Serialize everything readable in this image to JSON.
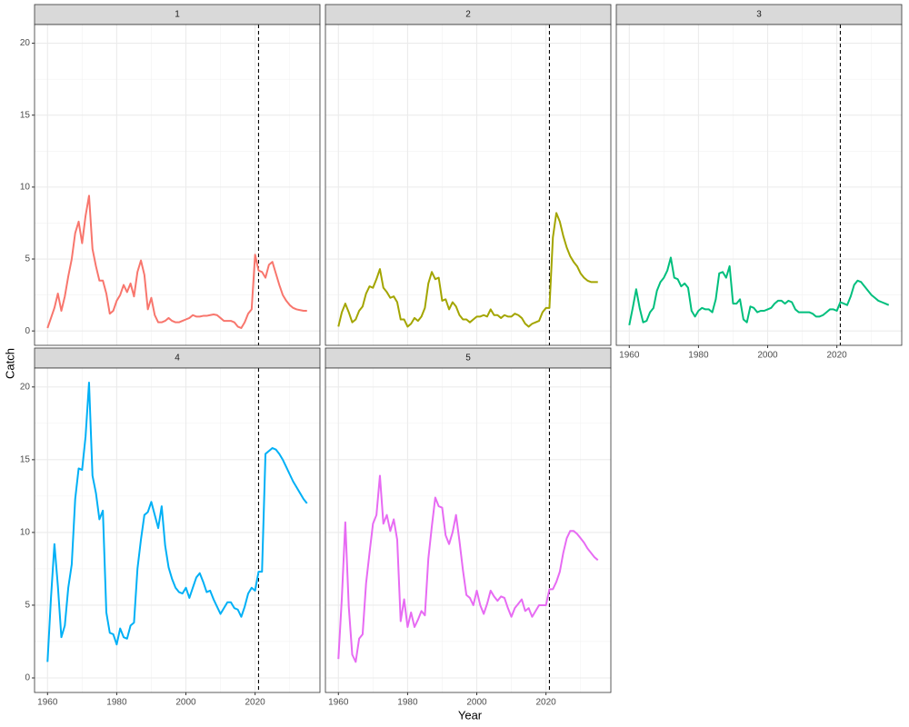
{
  "axis_labels": {
    "x": "Year",
    "y": "Catch"
  },
  "chart_data": [
    {
      "type": "line",
      "title": "1",
      "color": "#F8766D",
      "vline": 2021,
      "grid": true,
      "xlim": [
        1956.25,
        2038.75
      ],
      "ylim": [
        -1.0,
        21.3
      ],
      "xticks": [
        1960,
        1980,
        2000,
        2020
      ],
      "yticks": [
        0,
        5,
        10,
        15,
        20
      ],
      "xminor": [
        1970,
        1990,
        2010,
        2030
      ],
      "yminor": [
        2.5,
        7.5,
        12.5,
        17.5
      ],
      "x": [
        1960,
        1961,
        1962,
        1963,
        1964,
        1965,
        1966,
        1967,
        1968,
        1969,
        1970,
        1971,
        1972,
        1973,
        1974,
        1975,
        1976,
        1977,
        1978,
        1979,
        1980,
        1981,
        1982,
        1983,
        1984,
        1985,
        1986,
        1987,
        1988,
        1989,
        1990,
        1991,
        1992,
        1993,
        1994,
        1995,
        1996,
        1997,
        1998,
        1999,
        2000,
        2001,
        2002,
        2003,
        2004,
        2005,
        2006,
        2007,
        2008,
        2009,
        2010,
        2011,
        2012,
        2013,
        2014,
        2015,
        2016,
        2017,
        2018,
        2019,
        2020,
        2021,
        2022,
        2023,
        2024,
        2025,
        2026,
        2027,
        2028,
        2029,
        2030,
        2031,
        2032,
        2033,
        2034,
        2035
      ],
      "values": [
        0.2,
        0.9,
        1.6,
        2.6,
        1.4,
        2.4,
        3.8,
        5.0,
        6.8,
        7.6,
        6.1,
        8.0,
        9.4,
        5.7,
        4.5,
        3.5,
        3.5,
        2.6,
        1.2,
        1.4,
        2.1,
        2.5,
        3.2,
        2.7,
        3.3,
        2.4,
        4.1,
        4.9,
        3.9,
        1.5,
        2.3,
        1.1,
        0.6,
        0.6,
        0.7,
        0.9,
        0.7,
        0.6,
        0.6,
        0.7,
        0.8,
        0.9,
        1.1,
        1.0,
        1.0,
        1.05,
        1.05,
        1.1,
        1.15,
        1.1,
        0.9,
        0.7,
        0.7,
        0.7,
        0.6,
        0.3,
        0.2,
        0.6,
        1.2,
        1.5,
        5.3,
        4.2,
        4.1,
        3.7,
        4.6,
        4.8,
        4.0,
        3.2,
        2.5,
        2.1,
        1.8,
        1.6,
        1.5,
        1.45,
        1.4,
        1.4
      ]
    },
    {
      "type": "line",
      "title": "2",
      "color": "#A3A500",
      "vline": 2021,
      "grid": true,
      "xlim": [
        1956.25,
        2038.75
      ],
      "ylim": [
        -1.0,
        21.3
      ],
      "xticks": [
        1960,
        1980,
        2000,
        2020
      ],
      "yticks": [
        0,
        5,
        10,
        15,
        20
      ],
      "xminor": [
        1970,
        1990,
        2010,
        2030
      ],
      "yminor": [
        2.5,
        7.5,
        12.5,
        17.5
      ],
      "x": [
        1960,
        1961,
        1962,
        1963,
        1964,
        1965,
        1966,
        1967,
        1968,
        1969,
        1970,
        1971,
        1972,
        1973,
        1974,
        1975,
        1976,
        1977,
        1978,
        1979,
        1980,
        1981,
        1982,
        1983,
        1984,
        1985,
        1986,
        1987,
        1988,
        1989,
        1990,
        1991,
        1992,
        1993,
        1994,
        1995,
        1996,
        1997,
        1998,
        1999,
        2000,
        2001,
        2002,
        2003,
        2004,
        2005,
        2006,
        2007,
        2008,
        2009,
        2010,
        2011,
        2012,
        2013,
        2014,
        2015,
        2016,
        2017,
        2018,
        2019,
        2020,
        2021,
        2022,
        2023,
        2024,
        2025,
        2026,
        2027,
        2028,
        2029,
        2030,
        2031,
        2032,
        2033,
        2034,
        2035
      ],
      "values": [
        0.3,
        1.3,
        1.9,
        1.3,
        0.6,
        0.8,
        1.4,
        1.7,
        2.6,
        3.1,
        3.0,
        3.6,
        4.3,
        3.0,
        2.7,
        2.3,
        2.4,
        2.0,
        0.8,
        0.8,
        0.3,
        0.5,
        0.9,
        0.7,
        1.0,
        1.6,
        3.3,
        4.1,
        3.6,
        3.7,
        2.1,
        2.2,
        1.5,
        2.0,
        1.7,
        1.1,
        0.8,
        0.8,
        0.6,
        0.8,
        1.0,
        1.0,
        1.1,
        1.0,
        1.5,
        1.1,
        1.1,
        0.9,
        1.1,
        1.0,
        1.0,
        1.2,
        1.1,
        0.9,
        0.5,
        0.3,
        0.5,
        0.6,
        0.7,
        1.3,
        1.6,
        1.6,
        6.5,
        8.2,
        7.6,
        6.6,
        5.8,
        5.2,
        4.8,
        4.5,
        4.0,
        3.7,
        3.5,
        3.4,
        3.4,
        3.4
      ]
    },
    {
      "type": "line",
      "title": "3",
      "color": "#00BF7D",
      "vline": 2021,
      "grid": true,
      "xlim": [
        1956.25,
        2038.75
      ],
      "ylim": [
        -1.0,
        21.3
      ],
      "xticks": [
        1960,
        1980,
        2000,
        2020
      ],
      "yticks": [
        0,
        5,
        10,
        15,
        20
      ],
      "xminor": [
        1970,
        1990,
        2010,
        2030
      ],
      "yminor": [
        2.5,
        7.5,
        12.5,
        17.5
      ],
      "x": [
        1960,
        1961,
        1962,
        1963,
        1964,
        1965,
        1966,
        1967,
        1968,
        1969,
        1970,
        1971,
        1972,
        1973,
        1974,
        1975,
        1976,
        1977,
        1978,
        1979,
        1980,
        1981,
        1982,
        1983,
        1984,
        1985,
        1986,
        1987,
        1988,
        1989,
        1990,
        1991,
        1992,
        1993,
        1994,
        1995,
        1996,
        1997,
        1998,
        1999,
        2000,
        2001,
        2002,
        2003,
        2004,
        2005,
        2006,
        2007,
        2008,
        2009,
        2010,
        2011,
        2012,
        2013,
        2014,
        2015,
        2016,
        2017,
        2018,
        2019,
        2020,
        2021,
        2022,
        2023,
        2024,
        2025,
        2026,
        2027,
        2028,
        2029,
        2030,
        2031,
        2032,
        2033,
        2034,
        2035
      ],
      "values": [
        0.4,
        1.6,
        2.9,
        1.6,
        0.6,
        0.7,
        1.3,
        1.6,
        2.8,
        3.4,
        3.7,
        4.2,
        5.1,
        3.7,
        3.6,
        3.1,
        3.3,
        3.0,
        1.4,
        1.0,
        1.4,
        1.6,
        1.5,
        1.5,
        1.3,
        2.2,
        4.0,
        4.1,
        3.7,
        4.5,
        1.9,
        1.9,
        2.2,
        0.8,
        0.6,
        1.7,
        1.6,
        1.3,
        1.4,
        1.4,
        1.5,
        1.6,
        1.9,
        2.1,
        2.1,
        1.9,
        2.1,
        2.0,
        1.5,
        1.3,
        1.3,
        1.3,
        1.3,
        1.2,
        1.0,
        1.0,
        1.1,
        1.3,
        1.5,
        1.5,
        1.4,
        2.0,
        1.9,
        1.8,
        2.4,
        3.2,
        3.5,
        3.4,
        3.1,
        2.8,
        2.5,
        2.3,
        2.1,
        2.0,
        1.9,
        1.8
      ]
    },
    {
      "type": "line",
      "title": "4",
      "color": "#00B0F6",
      "vline": 2021,
      "grid": true,
      "xlim": [
        1956.25,
        2038.75
      ],
      "ylim": [
        -1.0,
        21.3
      ],
      "xticks": [
        1960,
        1980,
        2000,
        2020
      ],
      "yticks": [
        0,
        5,
        10,
        15,
        20
      ],
      "xminor": [
        1970,
        1990,
        2010,
        2030
      ],
      "yminor": [
        2.5,
        7.5,
        12.5,
        17.5
      ],
      "x": [
        1960,
        1961,
        1962,
        1963,
        1964,
        1965,
        1966,
        1967,
        1968,
        1969,
        1970,
        1971,
        1972,
        1973,
        1974,
        1975,
        1976,
        1977,
        1978,
        1979,
        1980,
        1981,
        1982,
        1983,
        1984,
        1985,
        1986,
        1987,
        1988,
        1989,
        1990,
        1991,
        1992,
        1993,
        1994,
        1995,
        1996,
        1997,
        1998,
        1999,
        2000,
        2001,
        2002,
        2003,
        2004,
        2005,
        2006,
        2007,
        2008,
        2009,
        2010,
        2011,
        2012,
        2013,
        2014,
        2015,
        2016,
        2017,
        2018,
        2019,
        2020,
        2021,
        2022,
        2023,
        2024,
        2025,
        2026,
        2027,
        2028,
        2029,
        2030,
        2031,
        2032,
        2033,
        2034,
        2035
      ],
      "values": [
        1.1,
        5.5,
        9.2,
        6.3,
        2.8,
        3.6,
        6.2,
        7.8,
        12.3,
        14.4,
        14.3,
        16.6,
        20.3,
        13.9,
        12.7,
        10.9,
        11.5,
        4.5,
        3.1,
        3.0,
        2.3,
        3.4,
        2.8,
        2.7,
        3.6,
        3.8,
        7.5,
        9.5,
        11.2,
        11.4,
        12.1,
        11.2,
        10.3,
        11.8,
        9.1,
        7.6,
        6.8,
        6.2,
        5.9,
        5.8,
        6.2,
        5.5,
        6.2,
        6.9,
        7.2,
        6.6,
        5.9,
        6.0,
        5.4,
        4.9,
        4.4,
        4.8,
        5.2,
        5.2,
        4.8,
        4.7,
        4.2,
        4.9,
        5.8,
        6.2,
        6.0,
        7.3,
        7.3,
        15.4,
        15.6,
        15.8,
        15.7,
        15.4,
        15.0,
        14.5,
        14.0,
        13.5,
        13.1,
        12.7,
        12.3,
        12.0
      ]
    },
    {
      "type": "line",
      "title": "5",
      "color": "#E76BF3",
      "vline": 2021,
      "grid": true,
      "xlim": [
        1956.25,
        2038.75
      ],
      "ylim": [
        -1.0,
        21.3
      ],
      "xticks": [
        1960,
        1980,
        2000,
        2020
      ],
      "yticks": [
        0,
        5,
        10,
        15,
        20
      ],
      "xminor": [
        1970,
        1990,
        2010,
        2030
      ],
      "yminor": [
        2.5,
        7.5,
        12.5,
        17.5
      ],
      "x": [
        1960,
        1961,
        1962,
        1963,
        1964,
        1965,
        1966,
        1967,
        1968,
        1969,
        1970,
        1971,
        1972,
        1973,
        1974,
        1975,
        1976,
        1977,
        1978,
        1979,
        1980,
        1981,
        1982,
        1983,
        1984,
        1985,
        1986,
        1987,
        1988,
        1989,
        1990,
        1991,
        1992,
        1993,
        1994,
        1995,
        1996,
        1997,
        1998,
        1999,
        2000,
        2001,
        2002,
        2003,
        2004,
        2005,
        2006,
        2007,
        2008,
        2009,
        2010,
        2011,
        2012,
        2013,
        2014,
        2015,
        2016,
        2017,
        2018,
        2019,
        2020,
        2021,
        2022,
        2023,
        2024,
        2025,
        2026,
        2027,
        2028,
        2029,
        2030,
        2031,
        2032,
        2033,
        2034,
        2035
      ],
      "values": [
        1.3,
        5.5,
        10.7,
        4.9,
        1.6,
        1.1,
        2.7,
        3.0,
        6.5,
        8.6,
        10.6,
        11.2,
        13.9,
        10.6,
        11.2,
        10.1,
        10.9,
        9.5,
        3.9,
        5.4,
        3.5,
        4.5,
        3.5,
        4.0,
        4.6,
        4.3,
        8.2,
        10.4,
        12.4,
        11.8,
        11.7,
        9.8,
        9.2,
        10.0,
        11.2,
        9.4,
        7.4,
        5.7,
        5.5,
        5.0,
        6.0,
        5.0,
        4.4,
        5.1,
        6.0,
        5.6,
        5.3,
        5.6,
        5.5,
        4.8,
        4.2,
        4.8,
        5.1,
        5.4,
        4.6,
        4.8,
        4.2,
        4.6,
        5.0,
        5.0,
        5.0,
        6.1,
        6.1,
        6.6,
        7.3,
        8.6,
        9.6,
        10.1,
        10.1,
        9.9,
        9.6,
        9.3,
        8.9,
        8.6,
        8.3,
        8.1
      ]
    }
  ]
}
